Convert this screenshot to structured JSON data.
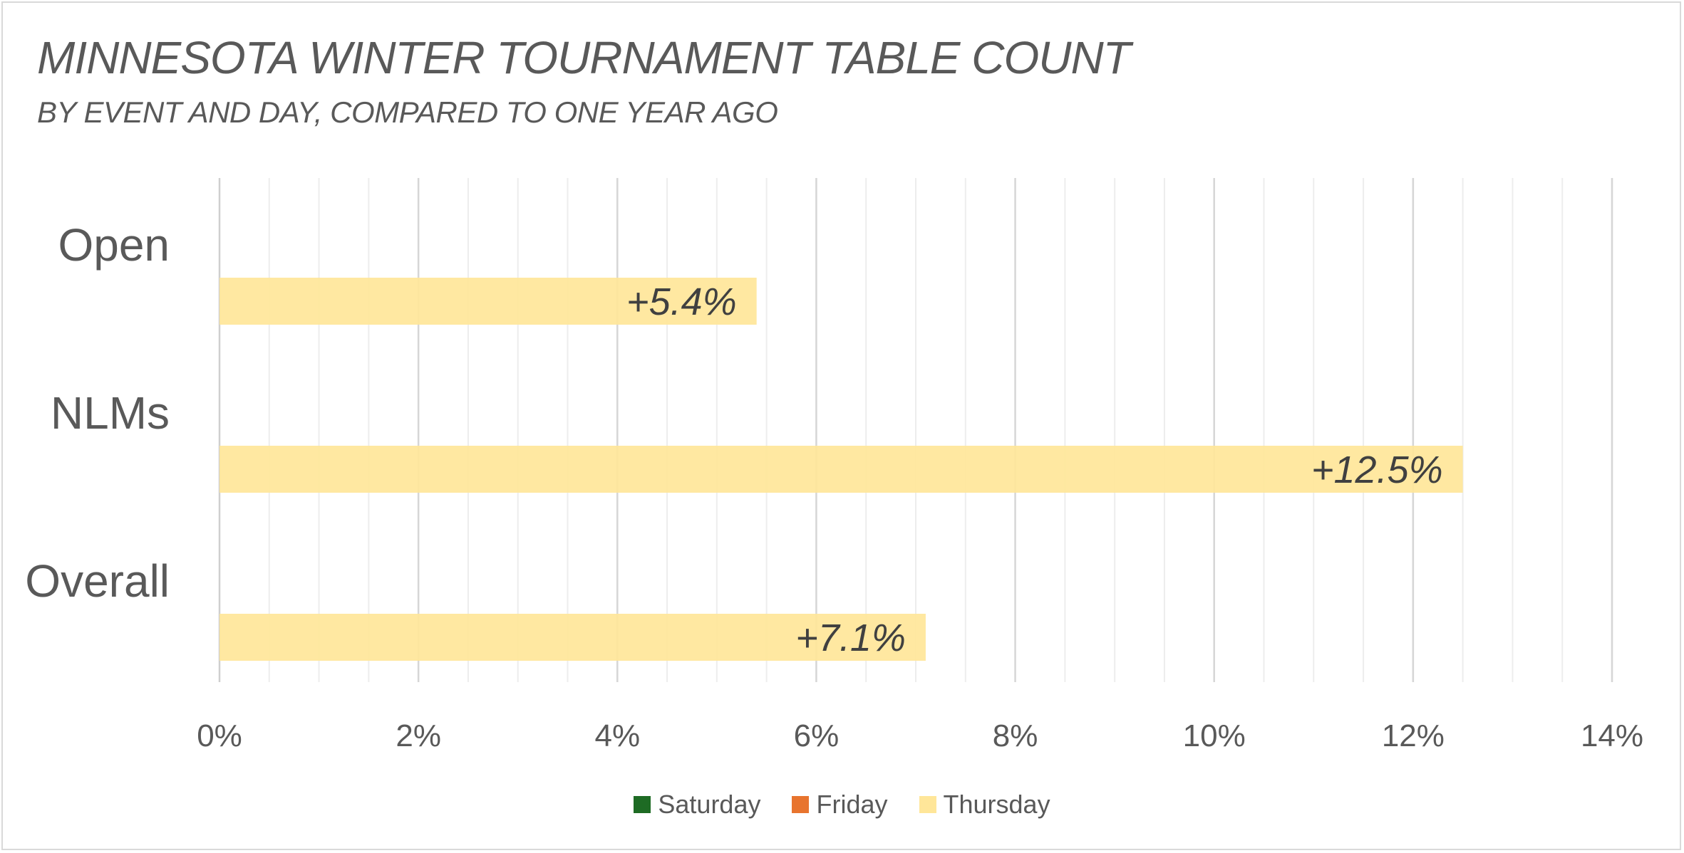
{
  "chart_data": {
    "type": "bar",
    "orientation": "horizontal",
    "title": "MINNESOTA WINTER TOURNAMENT TABLE COUNT",
    "subtitle": "BY EVENT AND DAY, COMPARED TO ONE YEAR AGO",
    "categories": [
      "Open",
      "NLMs",
      "Overall"
    ],
    "series": [
      {
        "name": "Saturday",
        "color": "#1e6b24",
        "values": [
          null,
          null,
          null
        ],
        "labels": [
          "",
          "",
          ""
        ]
      },
      {
        "name": "Friday",
        "color": "#e8742e",
        "values": [
          null,
          null,
          null
        ],
        "labels": [
          "",
          "",
          ""
        ]
      },
      {
        "name": "Thursday",
        "color": "#ffe699",
        "values": [
          5.4,
          12.5,
          7.1
        ],
        "labels": [
          "+5.4%",
          "+12.5%",
          "+7.1%"
        ]
      }
    ],
    "xlim": [
      0,
      14
    ],
    "xticks": [
      0,
      2,
      4,
      6,
      8,
      10,
      12,
      14
    ],
    "xtick_labels": [
      "0%",
      "2%",
      "4%",
      "6%",
      "8%",
      "10%",
      "12%",
      "14%"
    ],
    "grid": true,
    "minor_grid": true,
    "legend": "bottom"
  }
}
